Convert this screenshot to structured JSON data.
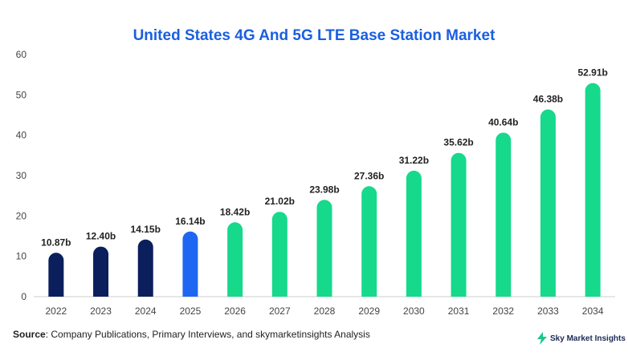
{
  "chart_data": {
    "type": "bar",
    "title": "United States 4G And 5G LTE Base Station Market",
    "categories": [
      "2022",
      "2023",
      "2024",
      "2025",
      "2026",
      "2027",
      "2028",
      "2029",
      "2030",
      "2031",
      "2032",
      "2033",
      "2034"
    ],
    "values": [
      10.87,
      12.4,
      14.15,
      16.14,
      18.42,
      21.02,
      23.98,
      27.36,
      31.22,
      35.62,
      40.64,
      46.38,
      52.91
    ],
    "value_labels": [
      "10.87b",
      "12.40b",
      "14.15b",
      "16.14b",
      "18.42b",
      "21.02b",
      "23.98b",
      "27.36b",
      "31.22b",
      "35.62b",
      "40.64b",
      "46.38b",
      "52.91b"
    ],
    "bar_colors": [
      "#0b1f5c",
      "#0b1f5c",
      "#0b1f5c",
      "#1f66f2",
      "#16d98c",
      "#16d98c",
      "#16d98c",
      "#16d98c",
      "#16d98c",
      "#16d98c",
      "#16d98c",
      "#16d98c",
      "#16d98c"
    ],
    "ylim": [
      0,
      60
    ],
    "yticks": [
      0,
      10,
      20,
      30,
      40,
      50,
      60
    ],
    "xlabel": "",
    "ylabel": "",
    "grid": false,
    "legend": "none"
  },
  "source": {
    "label": "Source",
    "text": ": Company Publications, Primary Interviews, and skymarketinsights Analysis"
  },
  "brand": {
    "name": "Sky Market Insights",
    "icon": "lightning-bolt-icon"
  }
}
